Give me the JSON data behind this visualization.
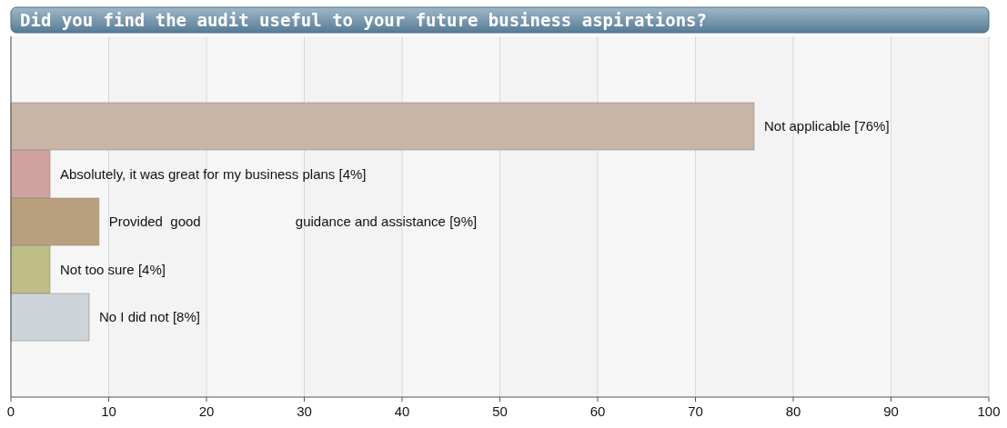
{
  "chart_data": {
    "type": "bar",
    "orientation": "horizontal",
    "title": "Did you find the audit useful to your future business aspirations?",
    "categories": [
      null,
      null,
      null,
      null,
      null
    ],
    "values": [
      76,
      4,
      9,
      4,
      8
    ],
    "colors": [
      "#c9b5a6",
      "#d0a3a0",
      "#b8a07e",
      "#bfbe85",
      "#cdd5da"
    ],
    "value_labels": [
      "Not applicable [76%]",
      "Absolutely, it was great for my business plans [4%]",
      "Provided  good                         guidance and assistance [9%]",
      "Not too sure [4%]",
      "No I did not [8%]"
    ],
    "xlim": [
      0,
      100
    ],
    "xticks": [
      0,
      10,
      20,
      30,
      40,
      50,
      60,
      70,
      80,
      90,
      100
    ],
    "grid": "x"
  }
}
